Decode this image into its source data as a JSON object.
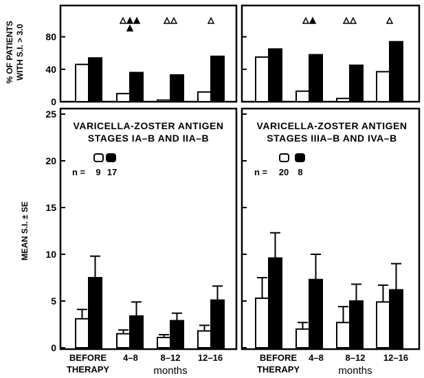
{
  "y_axis_labels": {
    "top_line1": "% OF PATIENTS",
    "top_line2": "WITH S.I. > 3.0",
    "bottom": "MEAN S.I. ± SE"
  },
  "x_axis": {
    "groups": [
      "BEFORE",
      "4–8",
      "8–12",
      "12–16"
    ],
    "group0_line2": "THERAPY",
    "unit": "months"
  },
  "chart_data": {
    "type": "bar",
    "top_ylim": [
      0,
      100
    ],
    "top_yticks": [
      0,
      40,
      80
    ],
    "bottom_ylim": [
      0,
      25
    ],
    "bottom_yticks": [
      0,
      5,
      10,
      15,
      20,
      25
    ],
    "panels": [
      {
        "title_line1": "VARICELLA-ZOSTER ANTIGEN",
        "title_line2": "STAGES IA–B AND IIA–B",
        "n_prefix": "n =",
        "n_open": "9",
        "n_filled": "17",
        "percent_open": [
          46,
          10,
          2,
          12
        ],
        "percent_filled": [
          54,
          36,
          33,
          56
        ],
        "mean_open": [
          3.1,
          1.5,
          1.1,
          1.8
        ],
        "se_open": [
          1.0,
          0.4,
          0.3,
          0.6
        ],
        "mean_filled": [
          7.5,
          3.4,
          2.9,
          5.1
        ],
        "se_filled": [
          2.3,
          1.5,
          0.8,
          1.5
        ],
        "markers": [
          {
            "group": 1,
            "symbols": [
              "open",
              "filled",
              "filled"
            ],
            "extra_below": "filled"
          },
          {
            "group": 2,
            "symbols": [
              "open",
              "open"
            ]
          },
          {
            "group": 3,
            "symbols": [
              "open"
            ]
          }
        ]
      },
      {
        "title_line1": "VARICELLA-ZOSTER ANTIGEN",
        "title_line2": "STAGES IIIA–B AND IVA–B",
        "n_prefix": "n =",
        "n_open": "20",
        "n_filled": "8",
        "percent_open": [
          55,
          13,
          4,
          37
        ],
        "percent_filled": [
          65,
          58,
          45,
          74
        ],
        "mean_open": [
          5.3,
          2.0,
          2.7,
          4.9
        ],
        "se_open": [
          2.2,
          0.7,
          1.7,
          1.8
        ],
        "mean_filled": [
          9.6,
          7.3,
          5.0,
          6.2
        ],
        "se_filled": [
          2.7,
          2.7,
          1.8,
          2.8
        ],
        "markers": [
          {
            "group": 1,
            "symbols": [
              "open",
              "filled"
            ]
          },
          {
            "group": 2,
            "symbols": [
              "open",
              "open"
            ]
          },
          {
            "group": 3,
            "symbols": [
              "open"
            ]
          }
        ]
      }
    ]
  }
}
